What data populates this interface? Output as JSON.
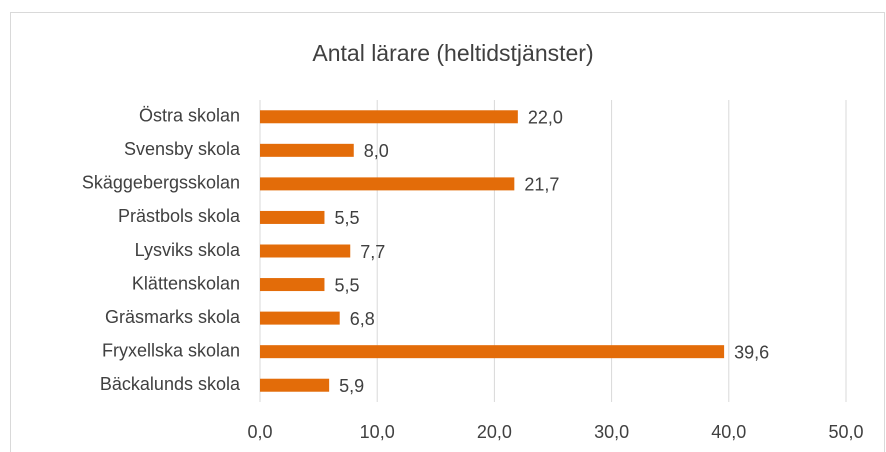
{
  "chart_data": {
    "type": "bar",
    "orientation": "horizontal",
    "title": "Antal lärare (heltidstjänster)",
    "categories": [
      "Östra skolan",
      "Svensby skola",
      "Skäggebergsskolan",
      "Prästbols skola",
      "Lysviks skola",
      "Klättenskolan",
      "Gräsmarks skola",
      "Fryxellska skolan",
      "Bäckalunds skola"
    ],
    "values": [
      22.0,
      8.0,
      21.7,
      5.5,
      7.7,
      5.5,
      6.8,
      39.6,
      5.9
    ],
    "value_labels": [
      "22,0",
      "8,0",
      "21,7",
      "5,5",
      "7,7",
      "5,5",
      "6,8",
      "39,6",
      "5,9"
    ],
    "color": "#e36c09",
    "xlim": [
      0,
      50
    ],
    "xticks": [
      {
        "value": 0,
        "label": "0,0"
      },
      {
        "value": 10,
        "label": "10,0"
      },
      {
        "value": 20,
        "label": "20,0"
      },
      {
        "value": 30,
        "label": "30,0"
      },
      {
        "value": 40,
        "label": "40,0"
      },
      {
        "value": 50,
        "label": "50,0"
      }
    ],
    "grid": true
  }
}
